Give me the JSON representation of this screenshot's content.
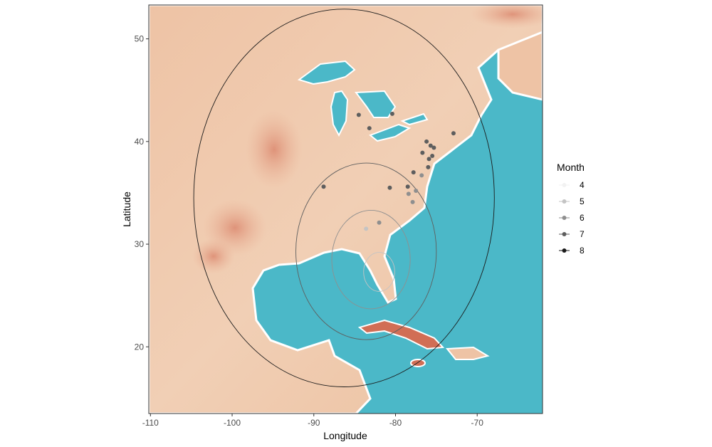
{
  "chart_data": {
    "type": "scatter",
    "title": "",
    "xlabel": "Longitude",
    "ylabel": "Latitude",
    "xlim": [
      -110.2,
      -62
    ],
    "ylim": [
      13.5,
      53.3
    ],
    "x_ticks": [
      -110,
      -100,
      -90,
      -80,
      -70
    ],
    "x_tick_labels": [
      "-110",
      "-100",
      "-90",
      "-80",
      "-70"
    ],
    "y_ticks": [
      20,
      30,
      40,
      50
    ],
    "y_tick_labels": [
      "20",
      "30",
      "40",
      "50"
    ],
    "grid": false,
    "background": "watercolor basemap of eastern North America",
    "legend": {
      "title": "Month",
      "placement": "right",
      "entries": [
        {
          "label": "4",
          "color": "#f2f2f2"
        },
        {
          "label": "5",
          "color": "#c4c4c4"
        },
        {
          "label": "6",
          "color": "#8f8f8f"
        },
        {
          "label": "7",
          "color": "#5e5e5e"
        },
        {
          "label": "8",
          "color": "#1a1a1a"
        }
      ]
    },
    "points": [
      {
        "lon": -84.5,
        "lat": 42.6,
        "month": "7"
      },
      {
        "lon": -83.2,
        "lat": 41.3,
        "month": "7"
      },
      {
        "lon": -80.4,
        "lat": 42.7,
        "month": "7"
      },
      {
        "lon": -72.9,
        "lat": 40.8,
        "month": "7"
      },
      {
        "lon": -76.2,
        "lat": 40.0,
        "month": "7"
      },
      {
        "lon": -75.7,
        "lat": 39.6,
        "month": "7"
      },
      {
        "lon": -75.3,
        "lat": 39.4,
        "month": "7"
      },
      {
        "lon": -76.7,
        "lat": 38.9,
        "month": "7"
      },
      {
        "lon": -75.5,
        "lat": 38.6,
        "month": "7"
      },
      {
        "lon": -75.9,
        "lat": 38.3,
        "month": "7"
      },
      {
        "lon": -76.0,
        "lat": 37.5,
        "month": "7"
      },
      {
        "lon": -77.8,
        "lat": 37.0,
        "month": "7"
      },
      {
        "lon": -76.8,
        "lat": 36.7,
        "month": "6"
      },
      {
        "lon": -88.8,
        "lat": 35.6,
        "month": "7"
      },
      {
        "lon": -80.7,
        "lat": 35.5,
        "month": "7"
      },
      {
        "lon": -78.5,
        "lat": 35.6,
        "month": "7"
      },
      {
        "lon": -77.5,
        "lat": 35.2,
        "month": "6"
      },
      {
        "lon": -78.4,
        "lat": 34.9,
        "month": "6"
      },
      {
        "lon": -77.9,
        "lat": 34.1,
        "month": "6"
      },
      {
        "lon": -82.0,
        "lat": 32.1,
        "month": "6"
      },
      {
        "lon": -83.6,
        "lat": 31.5,
        "month": "5"
      }
    ],
    "circles": [
      {
        "center_lon": -86.3,
        "center_lat": 34.5,
        "radius_deg": 18.4,
        "month": "8"
      },
      {
        "center_lon": -83.6,
        "center_lat": 29.3,
        "radius_deg": 8.6,
        "month": "7"
      },
      {
        "center_lon": -83.0,
        "center_lat": 28.5,
        "radius_deg": 4.8,
        "month": "6"
      },
      {
        "center_lon": -82.0,
        "center_lat": 27.3,
        "radius_deg": 1.9,
        "month": "5"
      }
    ]
  }
}
